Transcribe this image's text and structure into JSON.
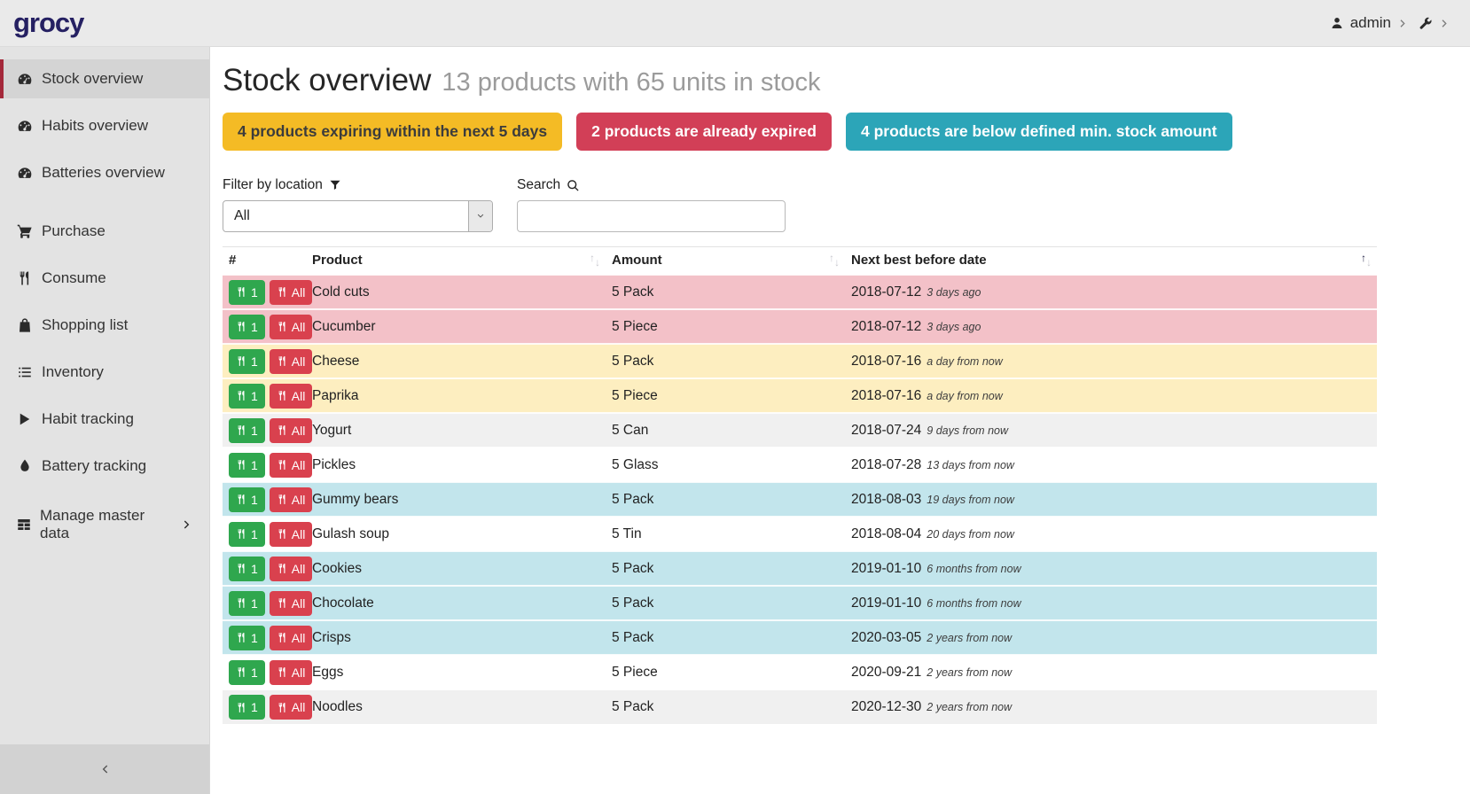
{
  "header": {
    "logo": "grocy",
    "user": {
      "label": "admin",
      "icon": "person-icon"
    },
    "settings_icon": "wrench-icon"
  },
  "sidebar": {
    "groups": [
      {
        "items": [
          {
            "label": "Stock overview",
            "icon": "tachometer-icon",
            "active": true
          },
          {
            "label": "Habits overview",
            "icon": "tachometer-icon",
            "active": false
          },
          {
            "label": "Batteries overview",
            "icon": "tachometer-icon",
            "active": false
          }
        ]
      },
      {
        "items": [
          {
            "label": "Purchase",
            "icon": "cart-icon",
            "active": false
          },
          {
            "label": "Consume",
            "icon": "utensils-icon",
            "active": false
          },
          {
            "label": "Shopping list",
            "icon": "bag-icon",
            "active": false
          },
          {
            "label": "Inventory",
            "icon": "list-icon",
            "active": false
          },
          {
            "label": "Habit tracking",
            "icon": "play-icon",
            "active": false
          },
          {
            "label": "Battery tracking",
            "icon": "droplet-icon",
            "active": false
          }
        ]
      },
      {
        "items": [
          {
            "label": "Manage master data",
            "icon": "table-icon",
            "active": false,
            "chevron": true
          }
        ]
      }
    ]
  },
  "page": {
    "title": "Stock overview",
    "subtitle": "13 products with 65 units in stock",
    "badges": [
      {
        "label": "4 products expiring within the next 5 days",
        "color": "#f4bb25",
        "text_color": "#3c3c3c"
      },
      {
        "label": "2 products are already expired",
        "color": "#d23f57",
        "text_color": "#ffffff"
      },
      {
        "label": "4 products are below defined min. stock amount",
        "color": "#2ca5b8",
        "text_color": "#ffffff"
      }
    ],
    "filter": {
      "label": "Filter by location",
      "icon": "funnel-icon",
      "value": "All"
    },
    "search": {
      "label": "Search",
      "icon": "search-icon",
      "value": ""
    }
  },
  "table": {
    "columns": [
      {
        "label": "#",
        "sortable": false,
        "sort": null
      },
      {
        "label": "Product",
        "sortable": true,
        "sort": null
      },
      {
        "label": "Amount",
        "sortable": true,
        "sort": null
      },
      {
        "label": "Next best before date",
        "sortable": true,
        "sort": "asc"
      }
    ],
    "buttons": {
      "consume_one": "1",
      "consume_all": "All",
      "icon": "utensils-icon"
    },
    "rows": [
      {
        "product": "Cold cuts",
        "amount": "5 Pack",
        "date": "2018-07-12",
        "timeago": "3 days ago",
        "state": "expired"
      },
      {
        "product": "Cucumber",
        "amount": "5 Piece",
        "date": "2018-07-12",
        "timeago": "3 days ago",
        "state": "expired"
      },
      {
        "product": "Cheese",
        "amount": "5 Pack",
        "date": "2018-07-16",
        "timeago": "a day from now",
        "state": "expiring"
      },
      {
        "product": "Paprika",
        "amount": "5 Piece",
        "date": "2018-07-16",
        "timeago": "a day from now",
        "state": "expiring"
      },
      {
        "product": "Yogurt",
        "amount": "5 Can",
        "date": "2018-07-24",
        "timeago": "9 days from now",
        "state": "stripe"
      },
      {
        "product": "Pickles",
        "amount": "5 Glass",
        "date": "2018-07-28",
        "timeago": "13 days from now",
        "state": "none"
      },
      {
        "product": "Gummy bears",
        "amount": "5 Pack",
        "date": "2018-08-03",
        "timeago": "19 days from now",
        "state": "belowmin"
      },
      {
        "product": "Gulash soup",
        "amount": "5 Tin",
        "date": "2018-08-04",
        "timeago": "20 days from now",
        "state": "none"
      },
      {
        "product": "Cookies",
        "amount": "5 Pack",
        "date": "2019-01-10",
        "timeago": "6 months from now",
        "state": "belowmin"
      },
      {
        "product": "Chocolate",
        "amount": "5 Pack",
        "date": "2019-01-10",
        "timeago": "6 months from now",
        "state": "belowmin"
      },
      {
        "product": "Crisps",
        "amount": "5 Pack",
        "date": "2020-03-05",
        "timeago": "2 years from now",
        "state": "belowmin"
      },
      {
        "product": "Eggs",
        "amount": "5 Piece",
        "date": "2020-09-21",
        "timeago": "2 years from now",
        "state": "none"
      },
      {
        "product": "Noodles",
        "amount": "5 Pack",
        "date": "2020-12-30",
        "timeago": "2 years from now",
        "state": "stripe"
      }
    ]
  }
}
